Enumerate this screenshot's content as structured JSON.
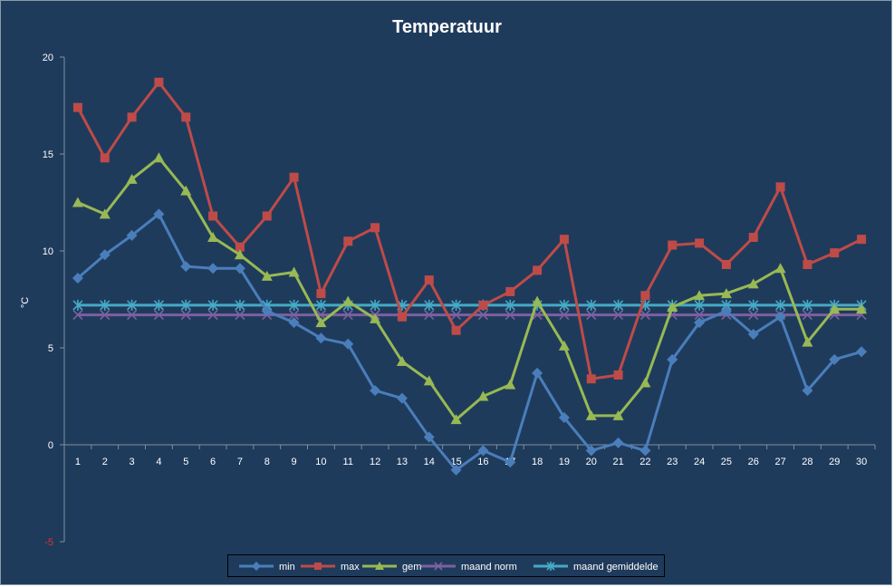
{
  "chart_data": {
    "type": "line",
    "title": "Temperatuur",
    "xlabel": "",
    "ylabel": "°C",
    "ylim": [
      -5,
      20
    ],
    "yticks": [
      20,
      15,
      10,
      5,
      0,
      -5
    ],
    "grid": false,
    "legend_position": "bottom",
    "categories": [
      "1",
      "2",
      "3",
      "4",
      "5",
      "6",
      "7",
      "8",
      "9",
      "10",
      "11",
      "12",
      "13",
      "14",
      "15",
      "16",
      "17",
      "18",
      "19",
      "20",
      "21",
      "22",
      "23",
      "24",
      "25",
      "26",
      "27",
      "28",
      "29",
      "30"
    ],
    "series": [
      {
        "name": "min",
        "color": "#4a7ebb",
        "marker": "diamond",
        "values": [
          8.6,
          9.8,
          10.8,
          11.9,
          9.2,
          9.1,
          9.1,
          6.9,
          6.3,
          5.5,
          5.2,
          2.8,
          2.4,
          0.4,
          -1.3,
          -0.3,
          -0.9,
          3.7,
          1.4,
          -0.3,
          0.1,
          -0.3,
          4.4,
          6.3,
          6.9,
          5.7,
          6.6,
          2.8,
          4.4,
          4.8
        ]
      },
      {
        "name": "max",
        "color": "#be4b48",
        "marker": "square",
        "values": [
          17.4,
          14.8,
          16.9,
          18.7,
          16.9,
          11.8,
          10.2,
          11.8,
          13.8,
          7.8,
          10.5,
          11.2,
          6.6,
          8.5,
          5.9,
          7.2,
          7.9,
          9.0,
          10.6,
          3.4,
          3.6,
          7.7,
          10.3,
          10.4,
          9.3,
          10.7,
          13.3,
          9.3,
          9.9,
          10.6
        ]
      },
      {
        "name": "gem",
        "color": "#98b954",
        "marker": "triangle",
        "values": [
          12.5,
          11.9,
          13.7,
          14.8,
          13.1,
          10.7,
          9.8,
          8.7,
          8.9,
          6.3,
          7.4,
          6.5,
          4.3,
          3.3,
          1.3,
          2.5,
          3.1,
          7.4,
          5.1,
          1.5,
          1.5,
          3.2,
          7.1,
          7.7,
          7.8,
          8.3,
          9.1,
          5.3,
          7.0,
          7.0
        ]
      },
      {
        "name": "maand norm",
        "color": "#7d60a0",
        "marker": "x",
        "values": [
          6.7,
          6.7,
          6.7,
          6.7,
          6.7,
          6.7,
          6.7,
          6.7,
          6.7,
          6.7,
          6.7,
          6.7,
          6.7,
          6.7,
          6.7,
          6.7,
          6.7,
          6.7,
          6.7,
          6.7,
          6.7,
          6.7,
          6.7,
          6.7,
          6.7,
          6.7,
          6.7,
          6.7,
          6.7,
          6.7
        ]
      },
      {
        "name": "maand gemiddelde",
        "color": "#46aac5",
        "marker": "star",
        "values": [
          7.2,
          7.2,
          7.2,
          7.2,
          7.2,
          7.2,
          7.2,
          7.2,
          7.2,
          7.2,
          7.2,
          7.2,
          7.2,
          7.2,
          7.2,
          7.2,
          7.2,
          7.2,
          7.2,
          7.2,
          7.2,
          7.2,
          7.2,
          7.2,
          7.2,
          7.2,
          7.2,
          7.2,
          7.2,
          7.2
        ]
      }
    ]
  }
}
